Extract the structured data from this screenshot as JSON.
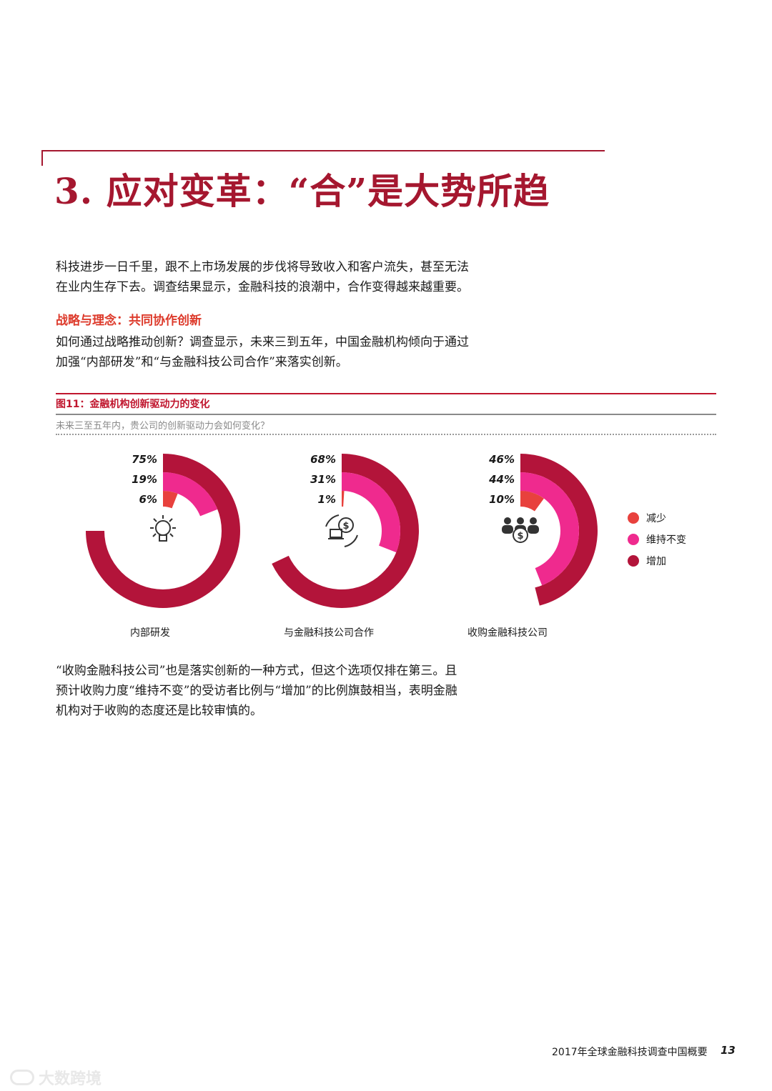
{
  "page": {
    "heading": "3. 应对变革：“合”是大势所趋",
    "intro": [
      "科技进步一日千里，跟不上市场发展的步伐将导致收入和客户流失，甚至无法",
      "在业内生存下去。调查结果显示，金融科技的浪潮中，合作变得越来越重要。"
    ],
    "subheading": "战略与理念：共同协作创新",
    "strategy": [
      "如何通过战略推动创新？调查显示，未来三到五年，中国金融机构倾向于通过",
      "加强“内部研发”和“与金融科技公司合作”来落实创新。"
    ],
    "conclusion": [
      "“收购金融科技公司”也是落实创新的一种方式，但这个选项仅排在第三。且",
      "预计收购力度“维持不变”的受访者比例与“增加”的比例旗鼓相当，表明金融",
      "机构对于收购的态度还是比较审慎的。"
    ]
  },
  "figure": {
    "title": "图11：金融机构创新驱动力的变化",
    "question": "未来三至五年内，贵公司的创新驱动力会如何变化？"
  },
  "chart_data": {
    "type": "radial-bar",
    "title": "图11：金融机构创新驱动力的变化",
    "colors": {
      "减少": "#e8413d",
      "维持不变": "#ef2a8e",
      "增加": "#b3143a"
    },
    "legend": [
      "减少",
      "维持不变",
      "增加"
    ],
    "legend_position": "right",
    "groups": [
      {
        "category": "内部研发",
        "icon": "lightbulb-icon",
        "values": {
          "增加": 75,
          "维持不变": 19,
          "减少": 6
        },
        "labels": [
          "75%",
          "19%",
          "6%"
        ]
      },
      {
        "category": "与金融科技公司合作",
        "icon": "exchange-icon",
        "values": {
          "增加": 68,
          "维持不变": 31,
          "减少": 1
        },
        "labels": [
          "68%",
          "31%",
          "1%"
        ]
      },
      {
        "category": "收购金融科技公司",
        "icon": "acquisition-icon",
        "values": {
          "增加": 46,
          "维持不变": 44,
          "减少": 10
        },
        "labels": [
          "46%",
          "44%",
          "10%"
        ]
      }
    ]
  },
  "footer": {
    "report": "2017年全球金融科技调查中国概要",
    "page_number": "13"
  },
  "watermark": "大数跨境"
}
